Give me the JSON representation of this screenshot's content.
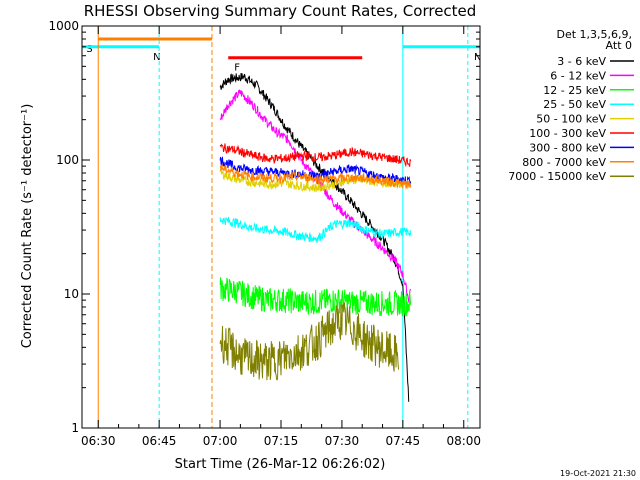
{
  "chart_data": {
    "type": "line",
    "title": "RHESSI Observing Summary Count Rates, Corrected",
    "xlabel": "Start Time (26-Mar-12 06:26:02)",
    "ylabel": "Corrected Count Rate (s⁻¹ detector⁻¹)",
    "yscale": "log",
    "ylim": [
      1,
      1000
    ],
    "xlim_minutes_after_0626": [
      0,
      98
    ],
    "x_ticks": [
      "06:30",
      "06:45",
      "07:00",
      "07:15",
      "07:30",
      "07:45",
      "08:00"
    ],
    "x_tick_minutes": [
      4,
      19,
      34,
      49,
      64,
      79,
      94
    ],
    "y_ticks": [
      1,
      10,
      100,
      1000
    ],
    "y_tick_labels": [
      "1",
      "10",
      "100",
      "1000"
    ],
    "legend_title": [
      "Det 1,3,5,6,9,",
      "Att 0"
    ],
    "legend_position": "right",
    "timestamp": "19-Oct-2021 21:30",
    "series": [
      {
        "name": "3 - 6 keV",
        "color": "#000000",
        "x": [
          34,
          36,
          40,
          43,
          47,
          50,
          54,
          58,
          62,
          66,
          70,
          74,
          77,
          79,
          80.5
        ],
        "y": [
          350,
          400,
          420,
          360,
          250,
          180,
          125,
          90,
          68,
          50,
          36,
          26,
          18,
          12,
          1.5
        ]
      },
      {
        "name": "6 - 12 keV",
        "color": "#ff00ff",
        "x": [
          34,
          36,
          39,
          42,
          45,
          48,
          51,
          54,
          58,
          62,
          66,
          70,
          74,
          77,
          79,
          80.5,
          81
        ],
        "y": [
          200,
          260,
          320,
          260,
          200,
          160,
          140,
          100,
          70,
          48,
          36,
          28,
          22,
          18,
          14,
          9,
          12
        ]
      },
      {
        "name": "12 - 25 keV",
        "color": "#00ff00",
        "x": [
          34,
          38,
          42,
          46,
          50,
          54,
          58,
          62,
          66,
          70,
          74,
          78,
          81
        ],
        "y": [
          11,
          10.5,
          9.5,
          9,
          9,
          8.7,
          8.7,
          9,
          8.7,
          8.6,
          8.5,
          8.5,
          8.5
        ]
      },
      {
        "name": "25 - 50 keV",
        "color": "#00ffff",
        "x": [
          34,
          38,
          42,
          46,
          50,
          54,
          58,
          62,
          66,
          70,
          74,
          78,
          81
        ],
        "y": [
          36,
          34,
          31,
          30,
          29,
          27,
          26,
          33,
          34,
          30,
          28,
          29,
          29
        ]
      },
      {
        "name": "50 - 100 keV",
        "color": "#e0d000",
        "x": [
          34,
          38,
          42,
          46,
          50,
          54,
          58,
          62,
          66,
          70,
          74,
          78,
          81
        ],
        "y": [
          80,
          72,
          68,
          66,
          67,
          64,
          62,
          66,
          71,
          70,
          68,
          67,
          66
        ]
      },
      {
        "name": "100 - 300 keV",
        "color": "#ff0000",
        "x": [
          34,
          38,
          42,
          46,
          50,
          54,
          58,
          62,
          66,
          70,
          74,
          78,
          81
        ],
        "y": [
          125,
          118,
          108,
          102,
          103,
          108,
          104,
          108,
          115,
          110,
          105,
          100,
          96
        ]
      },
      {
        "name": "300 - 800 keV",
        "color": "#0000ff",
        "x": [
          34,
          38,
          42,
          46,
          50,
          54,
          58,
          62,
          66,
          70,
          74,
          78,
          81
        ],
        "y": [
          100,
          88,
          84,
          82,
          80,
          78,
          76,
          82,
          86,
          80,
          74,
          72,
          70
        ]
      },
      {
        "name": "800 - 7000 keV",
        "color": "#ff8000",
        "x": [
          34,
          38,
          42,
          46,
          50,
          54,
          58,
          62,
          66,
          70,
          74,
          78,
          81
        ],
        "y": [
          88,
          80,
          75,
          73,
          74,
          75,
          72,
          72,
          74,
          73,
          70,
          67,
          65
        ]
      },
      {
        "name": "7000 - 15000 keV",
        "color": "#808000",
        "x": [
          34,
          37,
          40,
          43,
          46,
          49,
          52,
          55,
          58,
          61,
          64,
          67,
          70,
          73,
          76,
          78
        ],
        "y": [
          4.5,
          3.8,
          3.3,
          3.2,
          3.1,
          3.3,
          3.6,
          3.9,
          4.5,
          5.5,
          6.5,
          5.5,
          4.5,
          4.0,
          3.6,
          3.4
        ]
      }
    ],
    "attenuator_bars": [
      {
        "label": "S",
        "color": "#ff8000",
        "x0": 4,
        "x1": 32,
        "y": 800
      },
      {
        "label": "N",
        "color": "#00ffff",
        "x0": 0,
        "x1": 19,
        "y": 700
      },
      {
        "label": "N",
        "color": "#00ffff",
        "x0": 79,
        "x1": 98,
        "y": 700
      },
      {
        "label": "F",
        "color": "#ff0000",
        "x0": 36,
        "x1": 69,
        "y": 580
      }
    ],
    "annotations": [
      "S",
      "N",
      "F"
    ]
  }
}
